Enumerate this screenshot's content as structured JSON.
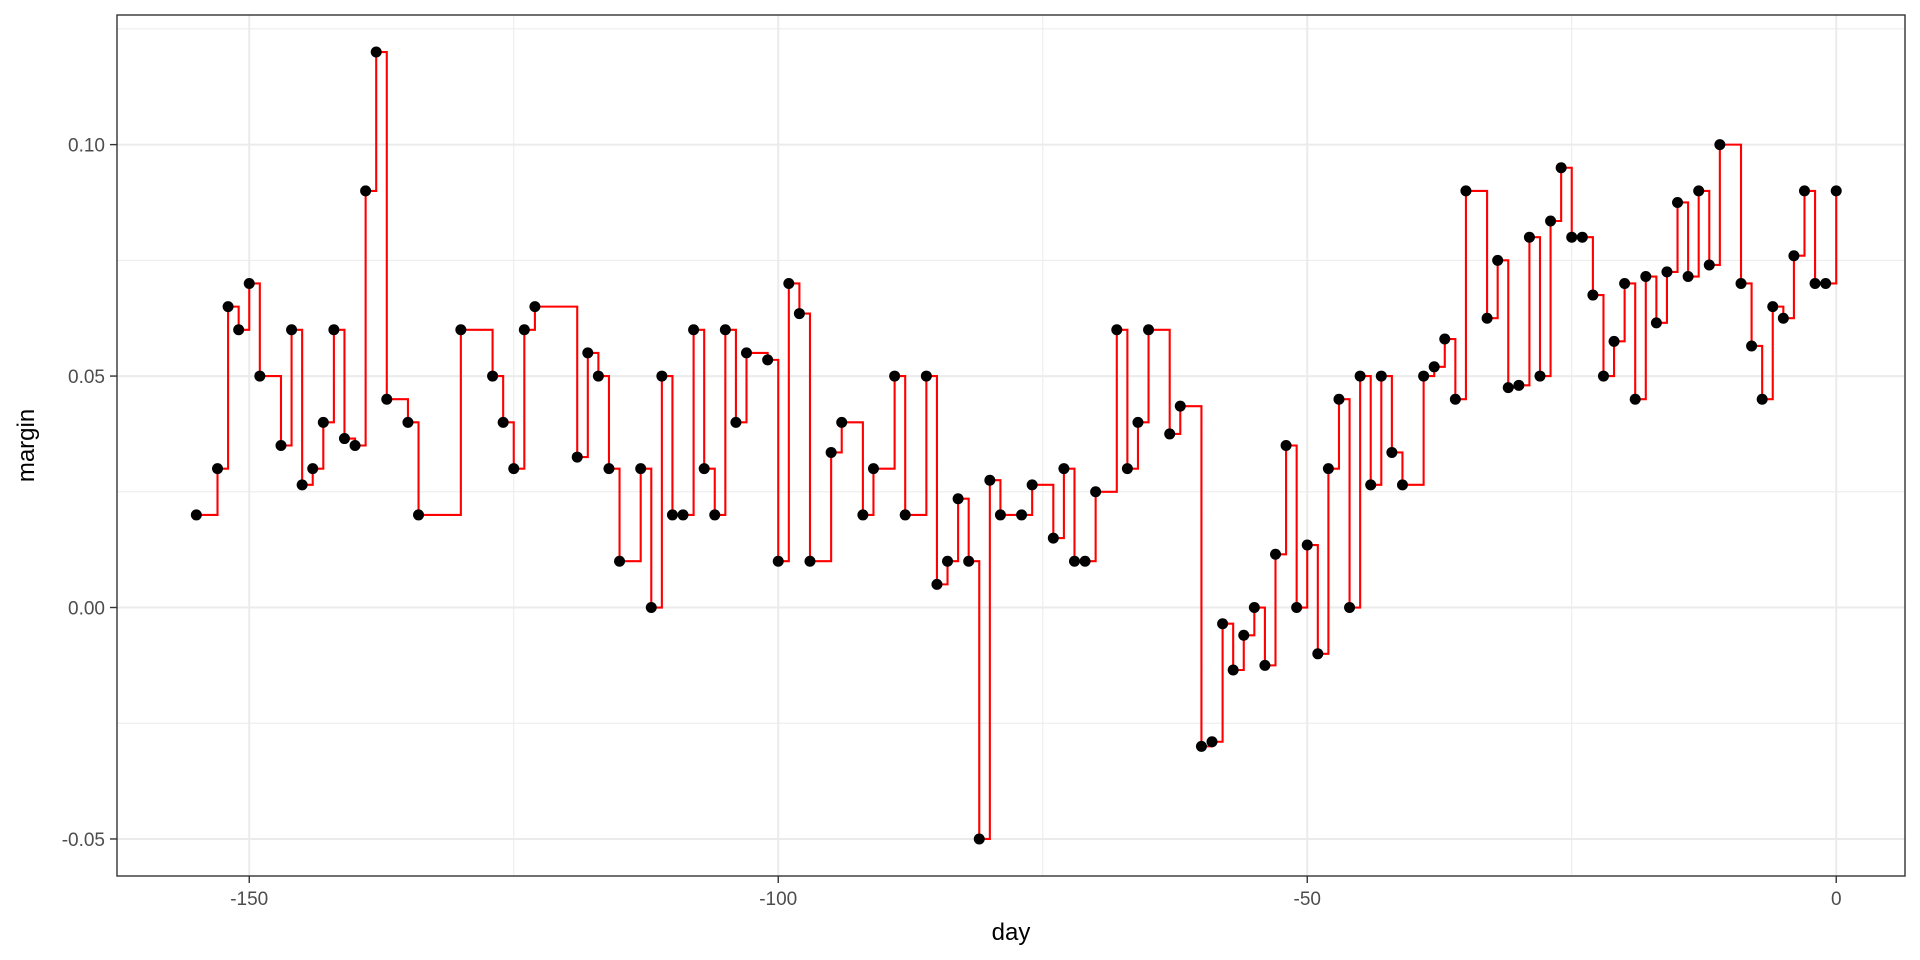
{
  "chart_data": {
    "type": "step+scatter",
    "xlabel": "day",
    "ylabel": "margin",
    "xlim": [
      -162.5,
      6.5
    ],
    "ylim": [
      -0.058,
      0.128
    ],
    "x_ticks": [
      -150,
      -100,
      -50,
      0
    ],
    "x_tick_labels": [
      "-150",
      "-100",
      "-50",
      "0"
    ],
    "y_ticks": [
      -0.05,
      0.0,
      0.05,
      0.1
    ],
    "y_tick_labels": [
      "-0.05",
      "0.00",
      "0.05",
      "0.10"
    ],
    "grid": true,
    "legend": "none",
    "colors": {
      "points": "#000000",
      "step_line": "#ff0000",
      "grid": "#ebebeb",
      "panel_border": "#333333"
    },
    "points": [
      [
        -155,
        0.02
      ],
      [
        -153,
        0.03
      ],
      [
        -152,
        0.065
      ],
      [
        -151,
        0.06
      ],
      [
        -150,
        0.07
      ],
      [
        -149,
        0.05
      ],
      [
        -147,
        0.035
      ],
      [
        -146,
        0.06
      ],
      [
        -145,
        0.0265
      ],
      [
        -144,
        0.03
      ],
      [
        -143,
        0.04
      ],
      [
        -142,
        0.06
      ],
      [
        -141,
        0.0365
      ],
      [
        -140,
        0.035
      ],
      [
        -139,
        0.09
      ],
      [
        -138,
        0.12
      ],
      [
        -137,
        0.045
      ],
      [
        -135,
        0.04
      ],
      [
        -134,
        0.02
      ],
      [
        -130,
        0.06
      ],
      [
        -127,
        0.05
      ],
      [
        -126,
        0.04
      ],
      [
        -125,
        0.03
      ],
      [
        -124,
        0.06
      ],
      [
        -123,
        0.065
      ],
      [
        -119,
        0.0325
      ],
      [
        -118,
        0.055
      ],
      [
        -117,
        0.05
      ],
      [
        -116,
        0.03
      ],
      [
        -115,
        0.01
      ],
      [
        -113,
        0.03
      ],
      [
        -112,
        0.0
      ],
      [
        -111,
        0.05
      ],
      [
        -110,
        0.02
      ],
      [
        -109,
        0.02
      ],
      [
        -108,
        0.06
      ],
      [
        -107,
        0.03
      ],
      [
        -106,
        0.02
      ],
      [
        -105,
        0.06
      ],
      [
        -104,
        0.04
      ],
      [
        -103,
        0.055
      ],
      [
        -101,
        0.0535
      ],
      [
        -100,
        0.01
      ],
      [
        -99,
        0.07
      ],
      [
        -98,
        0.0635
      ],
      [
        -97,
        0.01
      ],
      [
        -95,
        0.0335
      ],
      [
        -94,
        0.04
      ],
      [
        -92,
        0.02
      ],
      [
        -91,
        0.03
      ],
      [
        -89,
        0.05
      ],
      [
        -88,
        0.02
      ],
      [
        -86,
        0.05
      ],
      [
        -85,
        0.005
      ],
      [
        -84,
        0.01
      ],
      [
        -83,
        0.0235
      ],
      [
        -82,
        0.01
      ],
      [
        -81,
        -0.05
      ],
      [
        -80,
        0.0275
      ],
      [
        -79,
        0.02
      ],
      [
        -77,
        0.02
      ],
      [
        -76,
        0.0265
      ],
      [
        -74,
        0.015
      ],
      [
        -73,
        0.03
      ],
      [
        -72,
        0.01
      ],
      [
        -71,
        0.01
      ],
      [
        -70,
        0.025
      ],
      [
        -68,
        0.06
      ],
      [
        -67,
        0.03
      ],
      [
        -66,
        0.04
      ],
      [
        -65,
        0.06
      ],
      [
        -63,
        0.0375
      ],
      [
        -62,
        0.0435
      ],
      [
        -60,
        -0.03
      ],
      [
        -59,
        -0.029
      ],
      [
        -58,
        -0.0035
      ],
      [
        -57,
        -0.0135
      ],
      [
        -56,
        -0.006
      ],
      [
        -55,
        0.0
      ],
      [
        -54,
        -0.0125
      ],
      [
        -53,
        0.0115
      ],
      [
        -52,
        0.035
      ],
      [
        -51,
        0.0
      ],
      [
        -50,
        0.0135
      ],
      [
        -49,
        -0.01
      ],
      [
        -48,
        0.03
      ],
      [
        -47,
        0.045
      ],
      [
        -46,
        0.0
      ],
      [
        -45,
        0.05
      ],
      [
        -44,
        0.0265
      ],
      [
        -43,
        0.05
      ],
      [
        -42,
        0.0335
      ],
      [
        -41,
        0.0265
      ],
      [
        -39,
        0.05
      ],
      [
        -38,
        0.052
      ],
      [
        -37,
        0.058
      ],
      [
        -36,
        0.045
      ],
      [
        -35,
        0.09
      ],
      [
        -33,
        0.0625
      ],
      [
        -32,
        0.075
      ],
      [
        -31,
        0.0475
      ],
      [
        -30,
        0.048
      ],
      [
        -29,
        0.08
      ],
      [
        -28,
        0.05
      ],
      [
        -27,
        0.0835
      ],
      [
        -26,
        0.095
      ],
      [
        -25,
        0.08
      ],
      [
        -24,
        0.08
      ],
      [
        -23,
        0.0675
      ],
      [
        -22,
        0.05
      ],
      [
        -21,
        0.0575
      ],
      [
        -20,
        0.07
      ],
      [
        -19,
        0.045
      ],
      [
        -18,
        0.0715
      ],
      [
        -17,
        0.0615
      ],
      [
        -16,
        0.0725
      ],
      [
        -15,
        0.0875
      ],
      [
        -14,
        0.0715
      ],
      [
        -13,
        0.09
      ],
      [
        -12,
        0.074
      ],
      [
        -11,
        0.1
      ],
      [
        -9,
        0.07
      ],
      [
        -8,
        0.0565
      ],
      [
        -7,
        0.045
      ],
      [
        -6,
        0.065
      ],
      [
        -5,
        0.0625
      ],
      [
        -4,
        0.076
      ],
      [
        -3,
        0.09
      ],
      [
        -2,
        0.07
      ],
      [
        -1,
        0.07
      ],
      [
        0,
        0.09
      ]
    ]
  }
}
